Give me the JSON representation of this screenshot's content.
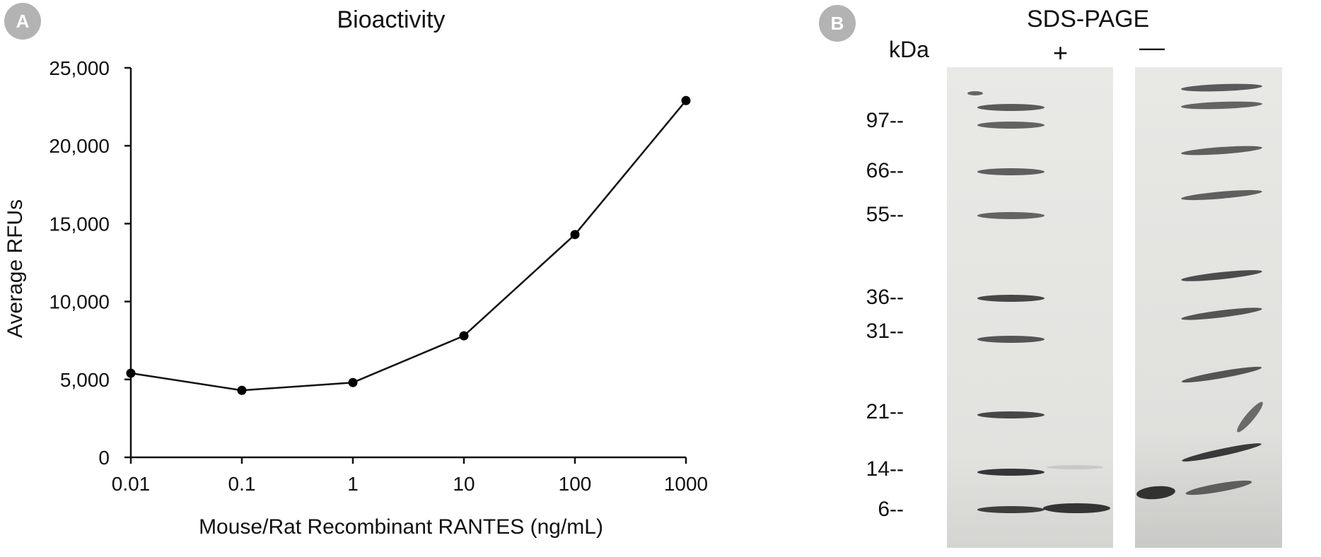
{
  "panel_a": {
    "badge": "A",
    "chart_data": {
      "type": "line",
      "title": "Bioactivity",
      "xlabel": "Mouse/Rat Recombinant RANTES (ng/mL)",
      "ylabel": "Average RFUs",
      "xscale": "log",
      "x": [
        0.01,
        0.1,
        1,
        10,
        100,
        1000
      ],
      "xtick_labels": [
        "0.01",
        "0.1",
        "1",
        "10",
        "100",
        "1000"
      ],
      "ytick_values": [
        0,
        5000,
        10000,
        15000,
        20000,
        25000
      ],
      "ytick_labels": [
        "0",
        "5,000",
        "10,000",
        "15,000",
        "20,000",
        "25,000"
      ],
      "ylim": [
        0,
        25000
      ],
      "series": [
        {
          "values": [
            5400,
            4300,
            4800,
            7800,
            14300,
            22900
          ]
        }
      ],
      "grid": false,
      "legend": "none",
      "line_color": "#111111",
      "marker_color": "#000000"
    }
  },
  "panel_b": {
    "badge": "B",
    "title": "SDS-PAGE",
    "unit_label": "kDa",
    "lanes": [
      "+",
      "—"
    ],
    "markers": [
      "97--",
      "66--",
      "55--",
      "36--",
      "31--",
      "21--",
      "14--",
      "6--"
    ],
    "gel_color": "#e6e6e3",
    "band_color": "#2b2b2b"
  }
}
